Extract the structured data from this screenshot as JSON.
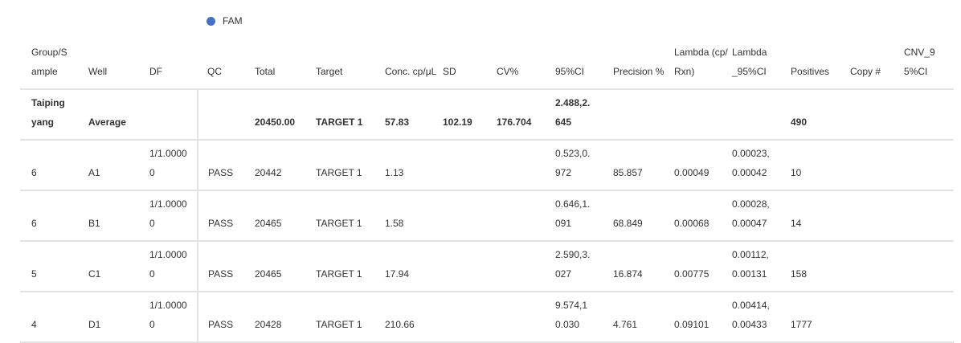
{
  "legend": {
    "label": "FAM"
  },
  "table": {
    "header": [
      "Group/Sample",
      "Well",
      "DF",
      "QC",
      "Total",
      "Target",
      "Conc. cp/μL",
      "SD",
      "CV%",
      "95%CI",
      "Precision %",
      "Lambda (cp/Rxn)",
      "Lambda_95%CI",
      "Positives",
      "Copy #",
      "CNV_95%CI"
    ],
    "rows": [
      [
        "Taiping yang",
        "Average",
        null,
        null,
        "20450.00",
        "TARGET 1",
        "57.83",
        "102.19",
        "176.704",
        "2.488,2.645",
        null,
        null,
        null,
        "490",
        null,
        null
      ],
      [
        "6",
        "A1",
        "1/1.00000",
        "PASS",
        "20442",
        "TARGET 1",
        "1.13",
        null,
        null,
        "0.523,0.972",
        "85.857",
        "0.00049",
        "0.00023,0.00042",
        "10",
        null,
        null
      ],
      [
        "6",
        "B1",
        "1/1.00000",
        "PASS",
        "20465",
        "TARGET 1",
        "1.58",
        null,
        null,
        "0.646,1.091",
        "68.849",
        "0.00068",
        "0.00028,0.00047",
        "14",
        null,
        null
      ],
      [
        "5",
        "C1",
        "1/1.00000",
        "PASS",
        "20465",
        "TARGET 1",
        "17.94",
        null,
        null,
        "2.590,3.027",
        "16.874",
        "0.00775",
        "0.00112,0.00131",
        "158",
        null,
        null
      ],
      [
        "4",
        "D1",
        "1/1.00000",
        "PASS",
        "20428",
        "TARGET 1",
        "210.66",
        null,
        null,
        "9.574,10.030",
        "4.761",
        "0.09101",
        "0.00414,0.00433",
        "1777",
        null,
        null
      ]
    ]
  }
}
